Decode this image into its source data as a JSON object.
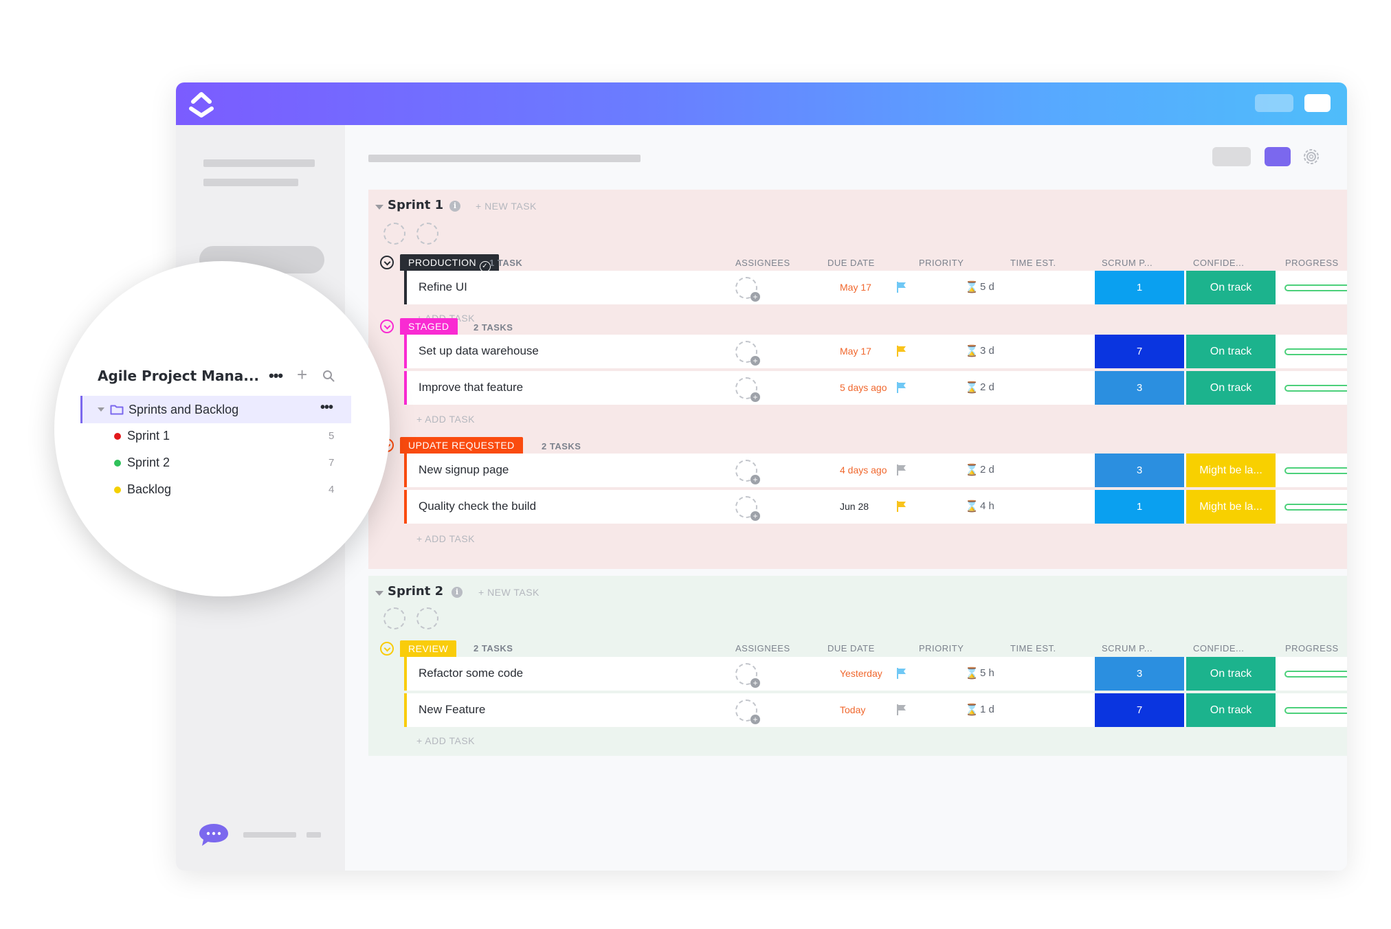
{
  "sidebar_panel": {
    "title": "Agile Project Mana...",
    "folder": "Sprints and Backlog",
    "items": [
      {
        "label": "Sprint 1",
        "count": "5",
        "color": "#e2191b"
      },
      {
        "label": "Sprint 2",
        "count": "7",
        "color": "#2fc15a"
      },
      {
        "label": "Backlog",
        "count": "4",
        "color": "#f4d000"
      }
    ]
  },
  "columns": {
    "assignees": "ASSIGNEES",
    "due_date": "DUE DATE",
    "priority": "PRIORITY",
    "time_est": "TIME EST.",
    "scrum": "SCRUM P...",
    "confidence": "CONFIDE...",
    "progress": "PROGRESS"
  },
  "new_task_label": "+ NEW TASK",
  "add_task_label": "+ ADD TASK",
  "sprints": [
    {
      "title": "Sprint 1",
      "groups": [
        {
          "status": "PRODUCTION",
          "status_color": "#292d34",
          "count": "1 TASK",
          "tasks": [
            {
              "name": "Refine UI",
              "due": "May 17",
              "due_color": "#f0672d",
              "priority": "light-blue",
              "time": "5 d",
              "scrum": "1",
              "scrum_color": "#0aa0f0",
              "confidence": "On track",
              "conf_color": "#1cb38d"
            }
          ]
        },
        {
          "status": "STAGED",
          "status_color": "#f92bd2",
          "count": "2 TASKS",
          "tasks": [
            {
              "name": "Set up data warehouse",
              "due": "May 17",
              "due_color": "#f0672d",
              "priority": "yellow",
              "time": "3 d",
              "scrum": "7",
              "scrum_color": "#0a35e0",
              "confidence": "On track",
              "conf_color": "#1cb38d"
            },
            {
              "name": "Improve that feature",
              "due": "5 days ago",
              "due_color": "#f0672d",
              "priority": "light-blue",
              "time": "2 d",
              "scrum": "3",
              "scrum_color": "#2b8fe0",
              "confidence": "On track",
              "conf_color": "#1cb38d"
            }
          ]
        },
        {
          "status": "UPDATE REQUESTED",
          "status_color": "#fa4b0f",
          "count": "2 TASKS",
          "tasks": [
            {
              "name": "New signup page",
              "due": "4 days ago",
              "due_color": "#f0672d",
              "priority": "gray",
              "time": "2 d",
              "scrum": "3",
              "scrum_color": "#2b8fe0",
              "confidence": "Might be la...",
              "conf_color": "#f8d000"
            },
            {
              "name": "Quality check the build",
              "due": "Jun 28",
              "due_color": "#292d34",
              "priority": "yellow",
              "time": "4 h",
              "scrum": "1",
              "scrum_color": "#0aa0f0",
              "confidence": "Might be la...",
              "conf_color": "#f8d000"
            }
          ]
        }
      ]
    },
    {
      "title": "Sprint 2",
      "groups": [
        {
          "status": "REVIEW",
          "status_color": "#f9cc0b",
          "count": "2 TASKS",
          "tasks": [
            {
              "name": "Refactor some code",
              "due": "Yesterday",
              "due_color": "#f0672d",
              "priority": "light-blue",
              "time": "5 h",
              "scrum": "3",
              "scrum_color": "#2b8fe0",
              "confidence": "On track",
              "conf_color": "#1cb38d"
            },
            {
              "name": "New Feature",
              "due": "Today",
              "due_color": "#f0672d",
              "priority": "gray",
              "time": "1 d",
              "scrum": "7",
              "scrum_color": "#0a35e0",
              "confidence": "On track",
              "conf_color": "#1cb38d"
            }
          ]
        }
      ]
    }
  ],
  "icons": {
    "logo": "clickup-logo-icon",
    "gear": "gear-icon",
    "search": "search-icon",
    "folder": "folder-icon",
    "chat": "chat-bubble-icon",
    "flag": "flag-icon",
    "hourglass": "hourglass-icon"
  },
  "colors": {
    "brand_purple": "#7b68ee",
    "sprint1_bg": "#f7e8e8",
    "sprint2_bg": "#ecf4ef"
  }
}
